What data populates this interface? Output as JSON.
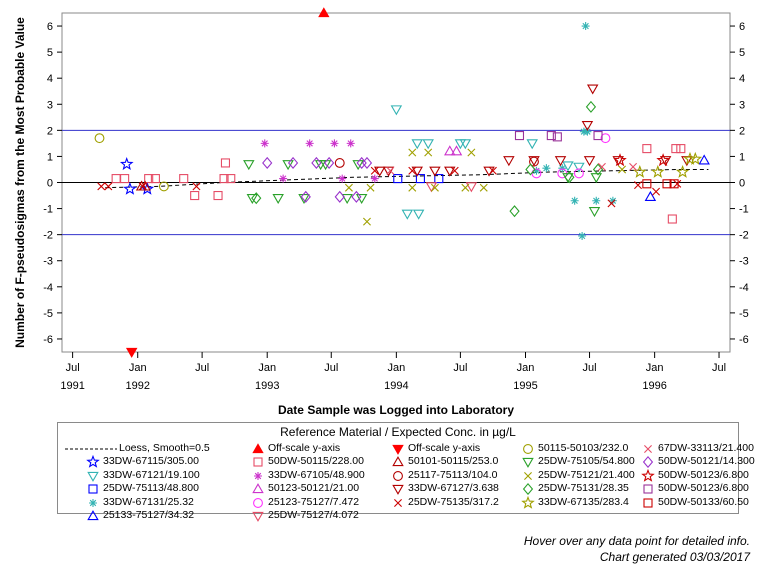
{
  "chart_data": {
    "type": "scatter",
    "title": "",
    "xlabel": "Date Sample was Logged into Laboratory",
    "ylabel": "Number of F-pseudosigmas from the Most Probable Value",
    "xlim": [
      "1991-06-01",
      "1996-08-01"
    ],
    "ylim": [
      -6.5,
      6.5
    ],
    "y_ticks": [
      -6,
      -5,
      -4,
      -3,
      -2,
      -1,
      0,
      1,
      2,
      3,
      4,
      5,
      6
    ],
    "x_ticks": [
      {
        "month": "Jul",
        "year": "1991",
        "date": "1991-07-01"
      },
      {
        "month": "Jan",
        "year": "1992",
        "date": "1992-01-01"
      },
      {
        "month": "Jul",
        "year": "",
        "date": "1992-07-01"
      },
      {
        "month": "Jan",
        "year": "1993",
        "date": "1993-01-01"
      },
      {
        "month": "Jul",
        "year": "",
        "date": "1993-07-01"
      },
      {
        "month": "Jan",
        "year": "1994",
        "date": "1994-01-01"
      },
      {
        "month": "Jul",
        "year": "",
        "date": "1994-07-01"
      },
      {
        "month": "Jan",
        "year": "1995",
        "date": "1995-01-01"
      },
      {
        "month": "Jul",
        "year": "",
        "date": "1995-07-01"
      },
      {
        "month": "Jan",
        "year": "1996",
        "date": "1996-01-01"
      },
      {
        "month": "Jul",
        "year": "",
        "date": "1996-07-01"
      }
    ],
    "reference_lines": [
      2,
      0,
      -2
    ],
    "grid": false,
    "legend_placement": "bottom",
    "legend_title": "Reference Material / Expected Conc. in µg/L",
    "loess": {
      "name": "Loess, Smooth=0.5",
      "points": [
        [
          "1991-10-01",
          -0.2
        ],
        [
          "1992-03-01",
          -0.15
        ],
        [
          "1992-09-01",
          0.0
        ],
        [
          "1993-03-01",
          0.1
        ],
        [
          "1993-09-01",
          0.2
        ],
        [
          "1994-03-01",
          0.25
        ],
        [
          "1994-09-01",
          0.3
        ],
        [
          "1995-03-01",
          0.4
        ],
        [
          "1995-09-01",
          0.45
        ],
        [
          "1996-03-01",
          0.5
        ],
        [
          "1996-06-01",
          0.5
        ]
      ]
    },
    "series": [
      {
        "name": "33DW-67115/305.00",
        "color": "#0000ff",
        "marker": "star",
        "points": [
          [
            "1991-12-01",
            0.7
          ],
          [
            "1991-12-10",
            -0.25
          ],
          [
            "1992-01-28",
            -0.25
          ]
        ]
      },
      {
        "name": "33DW-67121/19.100",
        "color": "#33b3b3",
        "marker": "trianglefilled-down",
        "points": [
          [
            "1994-01-01",
            2.8
          ],
          [
            "1994-02-01",
            -1.2
          ],
          [
            "1994-03-05",
            -1.2
          ],
          [
            "1994-03-01",
            1.5
          ],
          [
            "1994-04-01",
            1.5
          ],
          [
            "1994-07-01",
            1.5
          ],
          [
            "1994-07-15",
            1.5
          ],
          [
            "1995-01-20",
            1.5
          ],
          [
            "1995-05-01",
            0.65
          ],
          [
            "1995-06-01",
            0.6
          ]
        ]
      },
      {
        "name": "25DW-75113/48.800",
        "color": "#0000ff",
        "marker": "square",
        "points": [
          [
            "1994-01-05",
            0.15
          ],
          [
            "1994-03-10",
            0.15
          ],
          [
            "1994-05-01",
            0.15
          ]
        ]
      },
      {
        "name": "33DW-67131/25.32",
        "color": "#33b3b3",
        "marker": "asterisk",
        "points": [
          [
            "1995-06-20",
            6.0
          ],
          [
            "1995-06-15",
            1.95
          ],
          [
            "1995-06-25",
            1.95
          ],
          [
            "1995-06-10",
            -2.05
          ],
          [
            "1995-05-20",
            -0.7
          ],
          [
            "1995-07-20",
            -0.7
          ],
          [
            "1995-09-05",
            -0.7
          ],
          [
            "1995-03-01",
            0.55
          ],
          [
            "1995-04-15",
            0.55
          ],
          [
            "1995-02-01",
            0.45
          ]
        ]
      },
      {
        "name": "25133-75127/34.32",
        "color": "#0000ff",
        "marker": "triangle",
        "points": [
          [
            "1995-12-20",
            -0.55
          ],
          [
            "1996-05-20",
            0.85
          ]
        ]
      },
      {
        "name": "Off-scale y-axis",
        "color": "#ff0000",
        "marker": "trianglefilled",
        "points": [
          [
            "1993-06-10",
            6.5
          ]
        ]
      },
      {
        "name": "50DW-50115/228.00",
        "color": "#e64c66",
        "marker": "square",
        "points": [
          [
            "1991-11-01",
            0.15
          ],
          [
            "1991-11-25",
            0.15
          ],
          [
            "1992-02-01",
            0.15
          ],
          [
            "1992-02-20",
            0.15
          ],
          [
            "1992-05-10",
            0.15
          ],
          [
            "1992-06-10",
            -0.5
          ],
          [
            "1992-08-15",
            -0.5
          ],
          [
            "1992-09-01",
            0.15
          ],
          [
            "1992-09-05",
            0.75
          ],
          [
            "1992-09-20",
            0.15
          ],
          [
            "1995-12-10",
            1.3
          ],
          [
            "1996-02-20",
            -1.4
          ],
          [
            "1996-03-01",
            1.3
          ],
          [
            "1996-03-15",
            1.3
          ]
        ]
      },
      {
        "name": "33DW-67105/48.900",
        "color": "#cc33cc",
        "marker": "asterisk",
        "points": [
          [
            "1992-12-25",
            1.5
          ],
          [
            "1993-02-15",
            0.15
          ],
          [
            "1993-05-01",
            1.5
          ],
          [
            "1993-07-10",
            1.5
          ],
          [
            "1993-08-01",
            0.15
          ],
          [
            "1993-08-25",
            1.5
          ],
          [
            "1993-11-01",
            0.15
          ]
        ]
      },
      {
        "name": "50123-50121/21.00",
        "color": "#cc33cc",
        "marker": "triangle",
        "points": [
          [
            "1994-06-01",
            1.2
          ],
          [
            "1994-06-20",
            1.2
          ]
        ]
      },
      {
        "name": "25123-75127/7.472",
        "color": "#ff33ff",
        "marker": "circle",
        "points": [
          [
            "1995-02-01",
            0.35
          ],
          [
            "1995-04-15",
            0.35
          ],
          [
            "1995-06-01",
            0.35
          ],
          [
            "1995-08-15",
            1.7
          ]
        ]
      },
      {
        "name": "25DW-75127/4.072",
        "color": "#e64c66",
        "marker": "trianglefilled-down",
        "points": [
          [
            "1994-04-10",
            -0.15
          ],
          [
            "1994-08-01",
            -0.15
          ]
        ]
      },
      {
        "name": "Off-scale y-axis",
        "color": "#ff0000",
        "marker": "trianglefilled-down",
        "points": [
          [
            "1991-12-15",
            -6.5
          ]
        ]
      },
      {
        "name": "50101-50115/253.0",
        "color": "#b30000",
        "marker": "triangle",
        "points": [
          [
            "1992-01-12",
            -0.15
          ],
          [
            "1992-01-22",
            -0.15
          ]
        ]
      },
      {
        "name": "25117-75113/104.0",
        "color": "#b30000",
        "marker": "circle",
        "points": [
          [
            "1993-07-25",
            0.75
          ],
          [
            "1995-01-25",
            0.8
          ]
        ]
      },
      {
        "name": "33DW-67127/3.638",
        "color": "#b30000",
        "marker": "trianglefilled-down",
        "points": [
          [
            "1993-11-15",
            0.45
          ],
          [
            "1993-12-10",
            0.45
          ],
          [
            "1994-03-01",
            0.45
          ],
          [
            "1994-04-20",
            0.45
          ],
          [
            "1994-06-01",
            0.45
          ],
          [
            "1994-09-20",
            0.45
          ],
          [
            "1994-11-15",
            0.85
          ],
          [
            "1995-01-25",
            0.85
          ],
          [
            "1995-04-10",
            0.85
          ],
          [
            "1995-07-01",
            0.85
          ],
          [
            "1995-09-20",
            0.85
          ],
          [
            "1996-02-01",
            0.85
          ],
          [
            "1995-07-10",
            3.6
          ],
          [
            "1995-06-25",
            2.2
          ],
          [
            "1996-04-01",
            0.85
          ]
        ]
      },
      {
        "name": "25DW-75135/317.2",
        "color": "#cc0000",
        "marker": "x",
        "points": [
          [
            "1991-09-20",
            -0.15
          ],
          [
            "1991-10-10",
            -0.15
          ],
          [
            "1992-01-15",
            -0.15
          ],
          [
            "1992-06-15",
            -0.15
          ],
          [
            "1993-11-01",
            0.45
          ],
          [
            "1994-02-15",
            0.45
          ],
          [
            "1994-06-15",
            0.45
          ],
          [
            "1994-10-01",
            0.45
          ],
          [
            "1995-09-01",
            -0.8
          ],
          [
            "1995-11-15",
            -0.1
          ],
          [
            "1996-01-05",
            -0.35
          ],
          [
            "1996-03-05",
            -0.05
          ]
        ]
      },
      {
        "name": "50115-50103/232.0",
        "color": "#a0a000",
        "marker": "circle",
        "points": [
          [
            "1991-09-15",
            1.7
          ],
          [
            "1992-03-15",
            -0.15
          ]
        ]
      },
      {
        "name": "25DW-75105/54.800",
        "color": "#2aa12a",
        "marker": "trianglefilled-down",
        "points": [
          [
            "1992-11-10",
            0.7
          ],
          [
            "1992-11-20",
            -0.6
          ],
          [
            "1993-02-01",
            -0.6
          ],
          [
            "1993-03-01",
            0.7
          ],
          [
            "1993-04-15",
            -0.6
          ],
          [
            "1993-06-01",
            0.7
          ],
          [
            "1993-06-15",
            0.7
          ],
          [
            "1993-08-15",
            -0.6
          ],
          [
            "1993-09-15",
            0.7
          ],
          [
            "1993-09-25",
            -0.6
          ],
          [
            "1995-05-01",
            0.2
          ],
          [
            "1995-07-15",
            -1.1
          ],
          [
            "1995-07-20",
            0.2
          ]
        ]
      },
      {
        "name": "25DW-75121/21.400",
        "color": "#a0a000",
        "marker": "x",
        "points": [
          [
            "1993-08-20",
            -0.2
          ],
          [
            "1993-10-10",
            -1.5
          ],
          [
            "1993-10-20",
            -0.2
          ],
          [
            "1994-02-15",
            -0.2
          ],
          [
            "1994-04-20",
            -0.2
          ],
          [
            "1994-07-15",
            -0.2
          ],
          [
            "1994-09-05",
            -0.2
          ],
          [
            "1994-04-01",
            1.15
          ],
          [
            "1994-02-15",
            1.15
          ],
          [
            "1994-08-01",
            1.15
          ],
          [
            "1995-10-01",
            0.5
          ]
        ]
      },
      {
        "name": "25DW-75131/28.35",
        "color": "#2aa12a",
        "marker": "diamond",
        "points": [
          [
            "1992-12-01",
            -0.6
          ],
          [
            "1994-12-01",
            -1.1
          ],
          [
            "1995-01-15",
            0.5
          ],
          [
            "1995-07-05",
            2.9
          ],
          [
            "1995-07-25",
            0.5
          ],
          [
            "1995-05-05",
            0.2
          ]
        ]
      },
      {
        "name": "33DW-67135/283.4",
        "color": "#a0a000",
        "marker": "star",
        "points": [
          [
            "1995-11-20",
            0.4
          ],
          [
            "1996-01-10",
            0.4
          ],
          [
            "1996-04-10",
            0.9
          ],
          [
            "1996-04-25",
            0.9
          ],
          [
            "1996-03-20",
            0.4
          ]
        ]
      },
      {
        "name": "67DW-33113/21.400",
        "color": "#e64c66",
        "marker": "x",
        "points": [
          [
            "1993-12-15",
            0.45
          ],
          [
            "1995-08-05",
            0.6
          ],
          [
            "1995-11-01",
            0.6
          ]
        ]
      },
      {
        "name": "50DW-50121/14.300",
        "color": "#9933cc",
        "marker": "diamond",
        "points": [
          [
            "1993-01-01",
            0.75
          ],
          [
            "1993-03-15",
            0.75
          ],
          [
            "1993-04-20",
            -0.55
          ],
          [
            "1993-05-20",
            0.75
          ],
          [
            "1993-06-25",
            0.75
          ],
          [
            "1993-07-25",
            -0.55
          ],
          [
            "1993-09-10",
            -0.55
          ],
          [
            "1993-09-25",
            0.75
          ],
          [
            "1993-10-10",
            0.75
          ]
        ]
      },
      {
        "name": "50DW-50123/6.800",
        "color": "#cc0000",
        "marker": "star",
        "points": [
          [
            "1995-09-25",
            0.85
          ],
          [
            "1996-01-25",
            0.85
          ]
        ]
      },
      {
        "name": "50DW-50123/6.800",
        "color": "#993399",
        "marker": "square-open",
        "points": [
          [
            "1994-12-15",
            1.8
          ],
          [
            "1995-03-15",
            1.8
          ],
          [
            "1995-04-01",
            1.75
          ],
          [
            "1995-07-25",
            1.8
          ]
        ]
      },
      {
        "name": "50DW-50133/60.50",
        "color": "#cc0000",
        "marker": "square",
        "points": [
          [
            "1995-12-10",
            -0.05
          ],
          [
            "1996-02-05",
            -0.05
          ],
          [
            "1996-02-25",
            -0.05
          ]
        ]
      }
    ]
  },
  "legend_items": [
    {
      "label": "Loess, Smooth=0.5",
      "marker": "dashline",
      "color": "#000000"
    },
    {
      "label": "Off-scale y-axis",
      "marker": "trianglefilled",
      "color": "#ff0000"
    },
    {
      "label": "Off-scale y-axis",
      "marker": "trianglefilled-down",
      "color": "#ff0000"
    },
    {
      "label": "50115-50103/232.0",
      "marker": "circle",
      "color": "#a0a000"
    },
    {
      "label": "67DW-33113/21.400",
      "marker": "x",
      "color": "#e64c66"
    },
    {
      "label": "33DW-67115/305.00",
      "marker": "star",
      "color": "#0000ff"
    },
    {
      "label": "50DW-50115/228.00",
      "marker": "square",
      "color": "#e64c66"
    },
    {
      "label": "50101-50115/253.0",
      "marker": "triangle",
      "color": "#b30000"
    },
    {
      "label": "25DW-75105/54.800",
      "marker": "triangle-down",
      "color": "#2aa12a"
    },
    {
      "label": "50DW-50121/14.300",
      "marker": "diamond",
      "color": "#9933cc"
    },
    {
      "label": "33DW-67121/19.100",
      "marker": "triangle-down",
      "color": "#33b3b3"
    },
    {
      "label": "33DW-67105/48.900",
      "marker": "asterisk",
      "color": "#cc33cc"
    },
    {
      "label": "25117-75113/104.0",
      "marker": "circle",
      "color": "#b30000"
    },
    {
      "label": "25DW-75121/21.400",
      "marker": "x",
      "color": "#a0a000"
    },
    {
      "label": "50DW-50123/6.800",
      "marker": "star",
      "color": "#cc0000"
    },
    {
      "label": "25DW-75113/48.800",
      "marker": "square",
      "color": "#0000ff"
    },
    {
      "label": "50123-50121/21.00",
      "marker": "triangle",
      "color": "#cc33cc"
    },
    {
      "label": "33DW-67127/3.638",
      "marker": "triangle-down",
      "color": "#b30000"
    },
    {
      "label": "25DW-75131/28.35",
      "marker": "diamond",
      "color": "#2aa12a"
    },
    {
      "label": "50DW-50123/6.800",
      "marker": "square-open",
      "color": "#993399"
    },
    {
      "label": "33DW-67131/25.32",
      "marker": "asterisk",
      "color": "#33b3b3"
    },
    {
      "label": "25123-75127/7.472",
      "marker": "circle",
      "color": "#ff33ff"
    },
    {
      "label": "25DW-75135/317.2",
      "marker": "x",
      "color": "#cc0000"
    },
    {
      "label": "33DW-67135/283.4",
      "marker": "star",
      "color": "#a0a000"
    },
    {
      "label": "50DW-50133/60.50",
      "marker": "square",
      "color": "#cc0000"
    },
    {
      "label": "25133-75127/34.32",
      "marker": "triangle",
      "color": "#0000ff"
    },
    {
      "label": "25DW-75127/4.072",
      "marker": "triangle-down",
      "color": "#e64c66"
    }
  ],
  "footer": {
    "hover_note": "Hover over any data point for detailed info.",
    "generated": "Chart generated 03/03/2017"
  },
  "colors": {
    "reference_line": "#3333cc",
    "zero_line": "#000000",
    "frame": "#8a8a8a"
  }
}
